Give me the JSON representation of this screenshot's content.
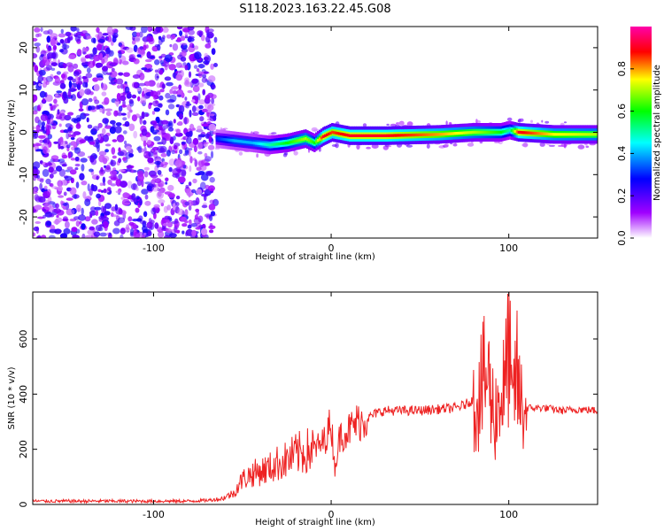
{
  "title": "S118.2023.163.22.45.G08",
  "chart_data": [
    {
      "type": "heatmap",
      "xlabel": "Height of straight line (km)",
      "ylabel": "Frequency (Hz)",
      "xlim": [
        -168,
        150
      ],
      "ylim": [
        -25,
        25
      ],
      "xticks": [
        -100,
        0,
        100
      ],
      "yticks": [
        -20,
        -10,
        0,
        10,
        20
      ],
      "colorbar": {
        "label": "Normalized spectral amplitude",
        "range": [
          0,
          1
        ],
        "ticks": [
          0.0,
          0.2,
          0.4,
          0.6,
          0.8
        ],
        "colormap": [
          "#ffffff",
          "#a000ff",
          "#0000ff",
          "#00ffff",
          "#00ff00",
          "#ffff00",
          "#ff0000",
          "#ff00aa"
        ]
      },
      "noise_region_x": [
        -168,
        -65
      ],
      "ridge": {
        "x": [
          -65,
          -55,
          -45,
          -35,
          -25,
          -15,
          -10,
          -5,
          0,
          10,
          30,
          60,
          80,
          95,
          100,
          105,
          125,
          150
        ],
        "frequency": [
          -1.5,
          -2,
          -2.5,
          -3,
          -2.5,
          -1.5,
          -2.5,
          -1,
          0,
          -0.8,
          -0.8,
          -0.5,
          0,
          0,
          0.5,
          0,
          -0.5,
          -0.5
        ],
        "amplitude": [
          0.3,
          0.4,
          0.4,
          0.5,
          0.6,
          0.7,
          0.6,
          0.9,
          0.85,
          0.9,
          0.9,
          0.8,
          0.7,
          0.6,
          0.5,
          0.9,
          0.75,
          0.7
        ]
      }
    },
    {
      "type": "line",
      "xlabel": "Height of straight line (km)",
      "ylabel": "SNR (10 * v/v)",
      "xlim": [
        -168,
        150
      ],
      "ylim": [
        0,
        770
      ],
      "xticks": [
        -100,
        0,
        100
      ],
      "yticks": [
        0,
        200,
        400,
        600
      ],
      "line_color": "#ee2222",
      "series": [
        {
          "x": [
            -168,
            -140,
            -110,
            -80,
            -70,
            -62,
            -55,
            -50,
            -45,
            -40,
            -35,
            -30,
            -25,
            -20,
            -15,
            -10,
            -5,
            -2,
            0,
            2,
            5,
            10,
            15,
            20,
            25,
            30,
            40,
            50,
            60,
            70,
            75,
            80,
            85,
            88,
            90,
            92,
            95,
            98,
            100,
            102,
            104,
            106,
            108,
            110,
            120,
            130,
            140,
            150
          ],
          "y": [
            12,
            12,
            12,
            12,
            15,
            20,
            40,
            90,
            110,
            120,
            130,
            150,
            160,
            180,
            190,
            200,
            220,
            260,
            300,
            130,
            250,
            270,
            300,
            310,
            330,
            340,
            340,
            340,
            345,
            350,
            360,
            380,
            420,
            480,
            380,
            320,
            390,
            420,
            600,
            300,
            500,
            380,
            350,
            350,
            350,
            340,
            345,
            340
          ]
        }
      ]
    }
  ]
}
